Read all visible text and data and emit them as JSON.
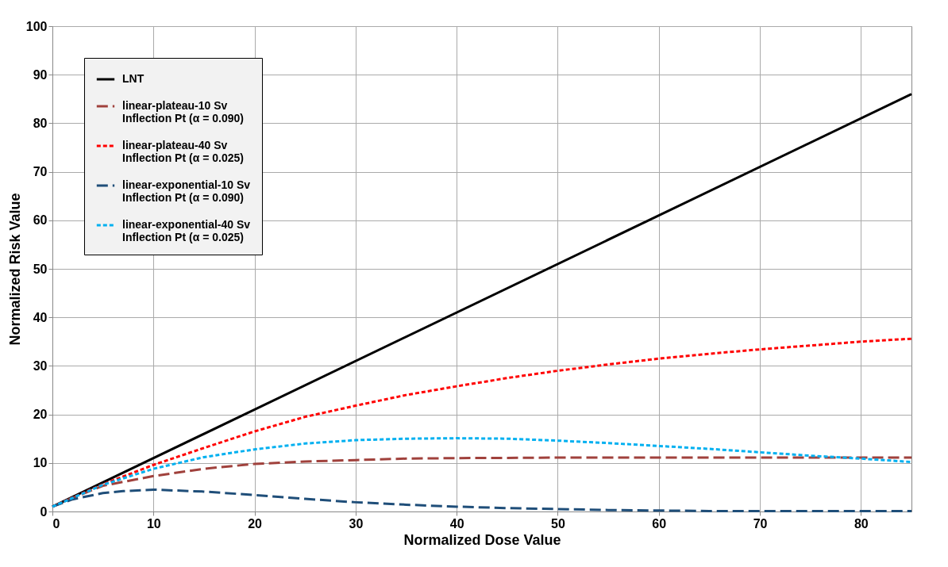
{
  "chart_data": {
    "type": "line",
    "xlabel": "Normalized Dose Value",
    "ylabel": "Normalized Risk Value",
    "xlim": [
      0,
      85
    ],
    "xticks": [
      0,
      10,
      20,
      30,
      40,
      50,
      60,
      70,
      80
    ],
    "ylim": [
      0,
      100
    ],
    "yticks": [
      0,
      10,
      20,
      30,
      40,
      50,
      60,
      70,
      80,
      90,
      100
    ],
    "grid": true,
    "legend": "top left",
    "marker": "none",
    "series": [
      {
        "name": "LNT",
        "color": "#000000",
        "line_style": "solid",
        "x": [
          0,
          85
        ],
        "values": [
          1,
          86
        ]
      },
      {
        "name": "linear-plateau-10 Sv\nInflection Pt (α = 0.090)",
        "color": "#a0413c",
        "line_style": "dashed",
        "x": [
          0,
          2,
          5,
          10,
          15,
          20,
          25,
          30,
          35,
          40,
          50,
          60,
          70,
          85
        ],
        "values": [
          1,
          2.8,
          5.3,
          7.3,
          8.8,
          9.8,
          10.3,
          10.6,
          10.9,
          11,
          11.1,
          11.1,
          11.1,
          11.1
        ]
      },
      {
        "name": "linear-plateau-40 Sv\nInflection Pt (α = 0.025)",
        "color": "#ff0000",
        "line_style": "dotted",
        "x": [
          0,
          5,
          10,
          15,
          20,
          25,
          30,
          35,
          40,
          45,
          50,
          55,
          60,
          65,
          70,
          75,
          80,
          85
        ],
        "values": [
          1,
          5.6,
          9.6,
          13.1,
          16.5,
          19.5,
          21.8,
          24,
          25.8,
          27.5,
          29,
          30.3,
          31.5,
          32.5,
          33.4,
          34.2,
          35,
          35.6
        ]
      },
      {
        "name": "linear-exponential-10 Sv\nInflection Pt (α = 0.090)",
        "color": "#1f4e79",
        "line_style": "dashed",
        "x": [
          0,
          2,
          5,
          7,
          10,
          15,
          20,
          25,
          30,
          35,
          40,
          45,
          50,
          55,
          60,
          65,
          70,
          75,
          80,
          85
        ],
        "values": [
          1,
          2.5,
          3.8,
          4.2,
          4.5,
          4.1,
          3.4,
          2.6,
          1.9,
          1.4,
          1,
          0.7,
          0.5,
          0.3,
          0.2,
          0.1,
          0.1,
          0.1,
          0.1,
          0.1
        ]
      },
      {
        "name": "linear-exponential-40 Sv\nInflection Pt (α = 0.025)",
        "color": "#00b0f0",
        "line_style": "dotted",
        "x": [
          0,
          5,
          10,
          15,
          20,
          25,
          30,
          35,
          40,
          45,
          50,
          55,
          60,
          65,
          70,
          75,
          80,
          85
        ],
        "values": [
          1,
          5.5,
          8.8,
          11.2,
          12.8,
          14,
          14.7,
          15,
          15.1,
          15,
          14.6,
          14.1,
          13.5,
          12.9,
          12.2,
          11.5,
          10.9,
          10.2
        ]
      }
    ]
  }
}
